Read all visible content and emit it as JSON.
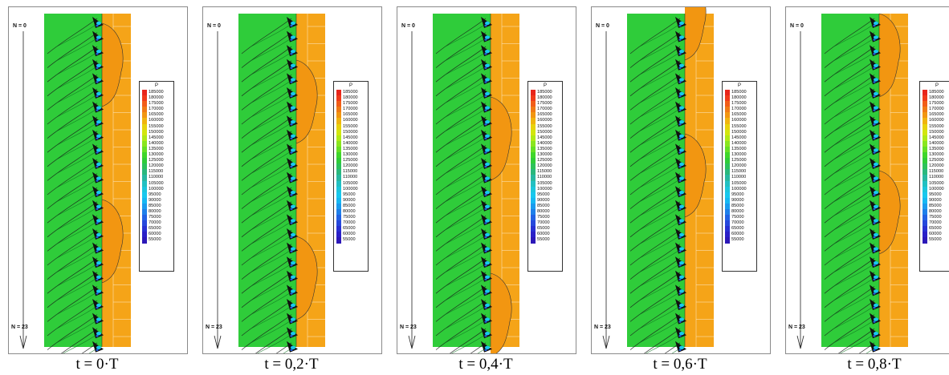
{
  "figure": {
    "legend_title": "P",
    "axis_top_label": "N = 0",
    "axis_bottom_label": "N = 23",
    "legend_values": [
      "185000",
      "180000",
      "175000",
      "170000",
      "165000",
      "160000",
      "155000",
      "150000",
      "145000",
      "140000",
      "135000",
      "130000",
      "125000",
      "120000",
      "115000",
      "110000",
      "105000",
      "100000",
      "95000",
      "90000",
      "85000",
      "80000",
      "75000",
      "70000",
      "65000",
      "60000",
      "55000"
    ],
    "legend_colors": [
      "#e8251b",
      "#f03a1a",
      "#f25d18",
      "#f07a14",
      "#f29611",
      "#f0b40e",
      "#e8d20c",
      "#d2e60e",
      "#b0ea16",
      "#8ae61e",
      "#66e024",
      "#3fd62a",
      "#2fcc38",
      "#2cc25a",
      "#2ab87c",
      "#28b8a0",
      "#22c0c2",
      "#1cc6dc",
      "#18c8ee",
      "#16b8f2",
      "#1a9cee",
      "#1e80ea",
      "#2262e4",
      "#2648dc",
      "#2830d2",
      "#2a20c8",
      "#2c18b8"
    ],
    "panels": [
      {
        "caption": "t = 0·T"
      },
      {
        "caption": "t = 0,2·T"
      },
      {
        "caption": "t = 0,4·T"
      },
      {
        "caption": "t = 0,6·T"
      },
      {
        "caption": "t = 0,8·T"
      }
    ]
  },
  "chart_data": {
    "type": "heatmap",
    "variable": "P",
    "colorbar_range": [
      55000,
      185000
    ],
    "colorbar_step": 5000,
    "passage_range": [
      0,
      23
    ],
    "time_instants": [
      "0·T",
      "0,2·T",
      "0,4·T",
      "0,6·T",
      "0,8·T"
    ]
  }
}
